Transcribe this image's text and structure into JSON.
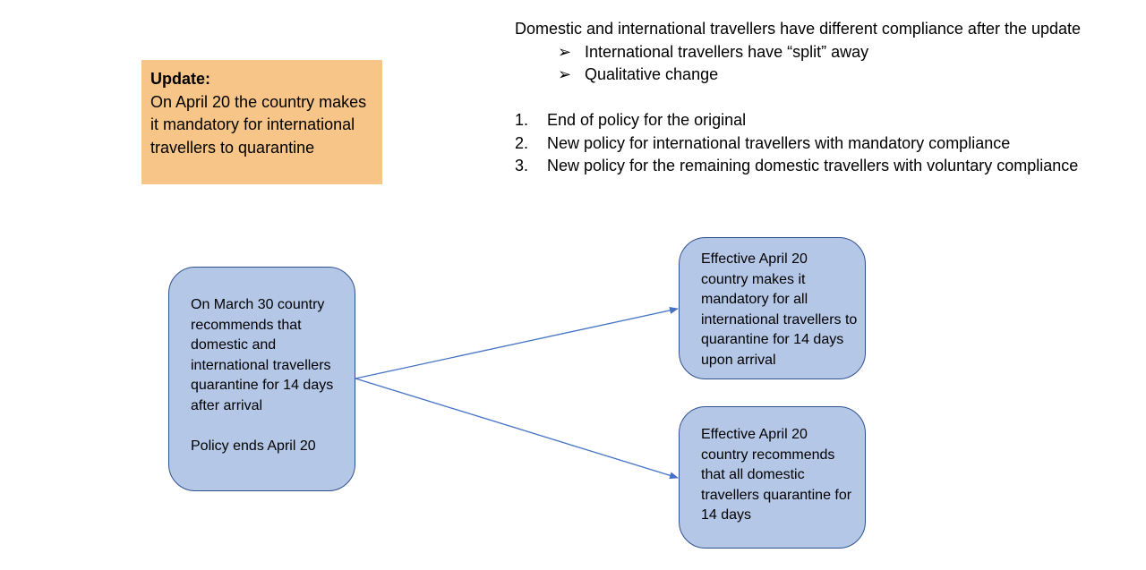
{
  "update": {
    "heading": "Update:",
    "text": "On April 20 the country makes it mandatory for international travellers to quarantine"
  },
  "summary": {
    "intro": "Domestic and international travellers have different compliance after the update",
    "bullet_marker": "➢",
    "bullets": [
      "International travellers have “split” away",
      "Qualitative change"
    ],
    "numbered": [
      {
        "num": "1.",
        "text": "End of policy for the original"
      },
      {
        "num": "2.",
        "text": "New policy for international travellers with mandatory compliance"
      },
      {
        "num": "3.",
        "text": "New policy for the remaining domestic travellers with voluntary compliance"
      }
    ]
  },
  "nodes": {
    "source": {
      "text": "On March 30 country recommends that domestic and international travellers quarantine for 14 days after arrival",
      "note": "Policy ends April 20"
    },
    "international": {
      "text": "Effective April 20 country makes it mandatory for all international travellers to quarantine for 14 days upon arrival"
    },
    "domestic": {
      "text": "Effective April 20 country recommends that all domestic travellers quarantine for 14 days"
    }
  },
  "colors": {
    "update_fill": "#f7c587",
    "node_fill": "#b4c7e7",
    "node_border": "#2f528f",
    "arrow": "#4472c4"
  }
}
